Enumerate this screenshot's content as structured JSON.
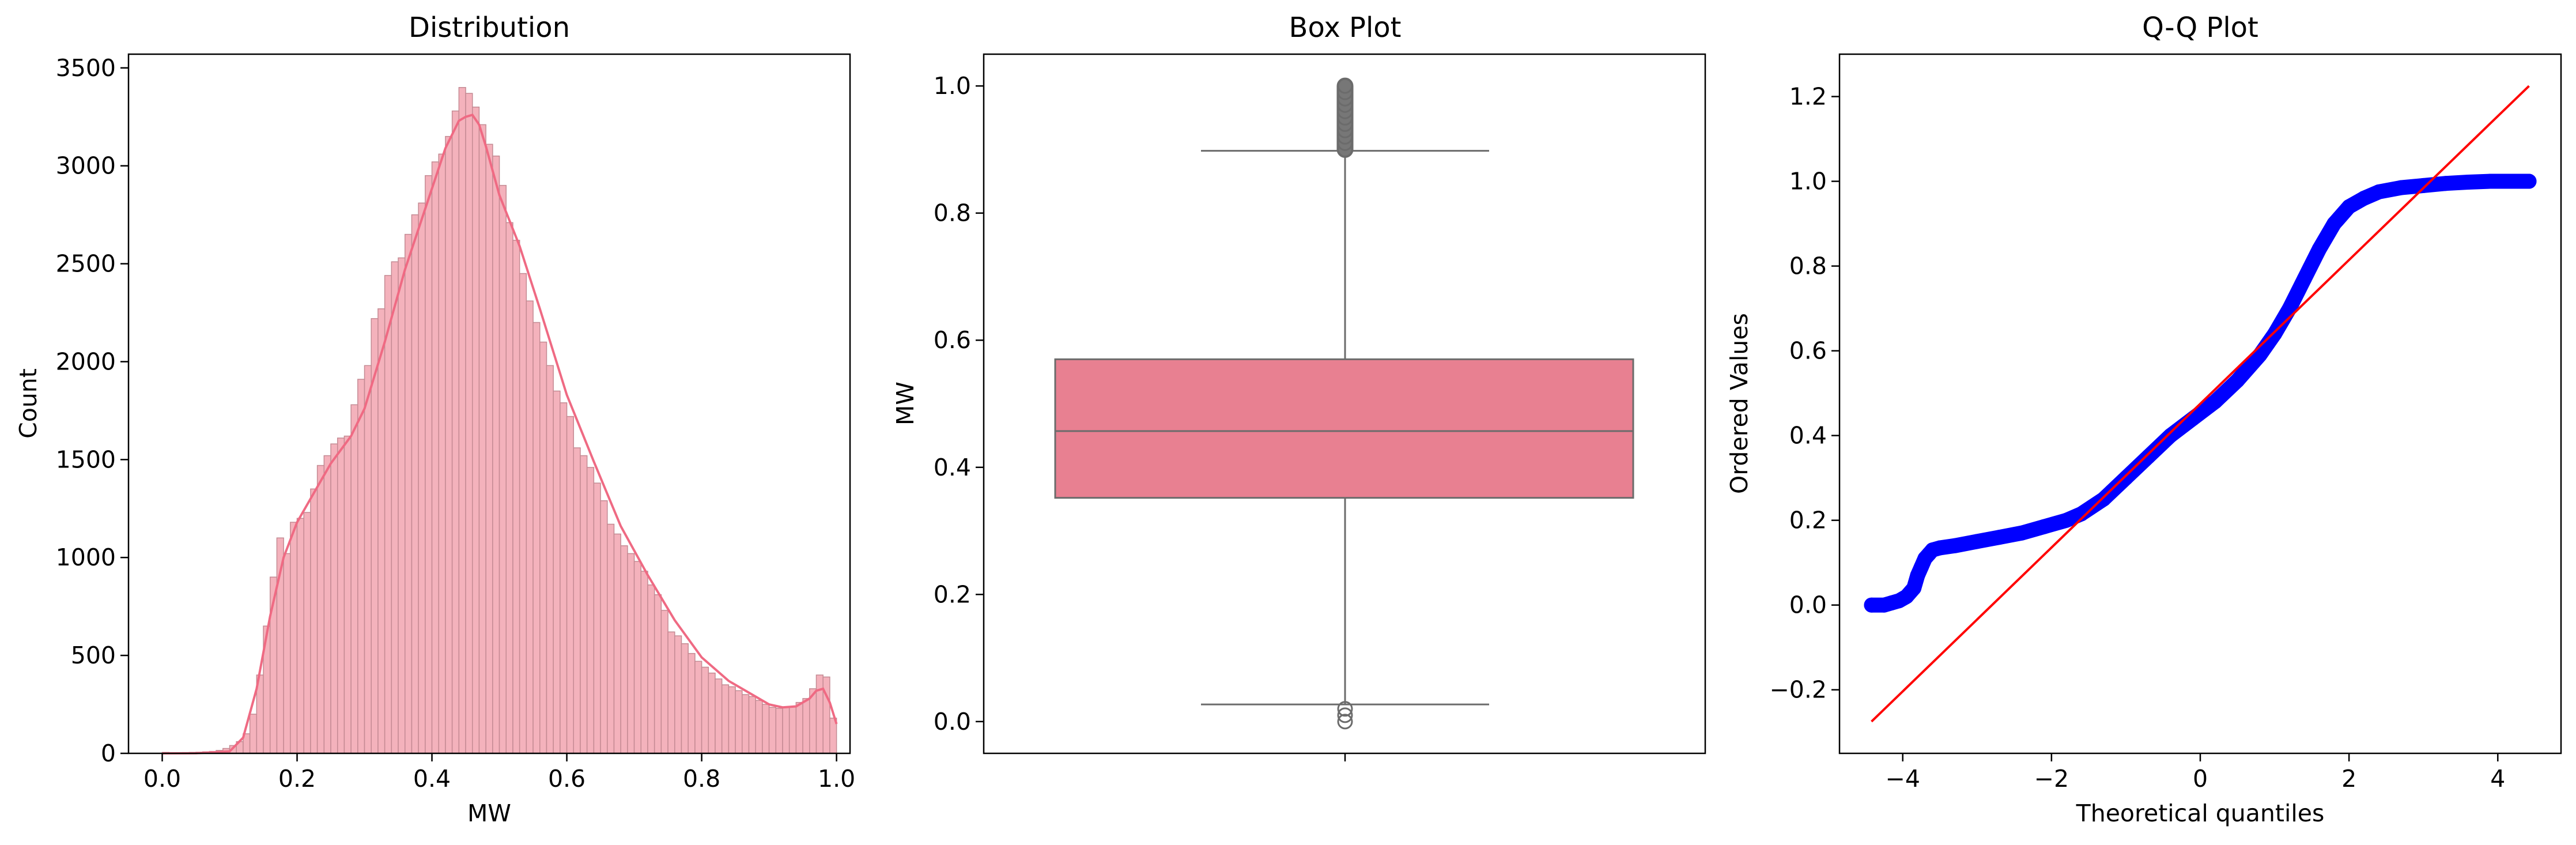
{
  "chart_data": [
    {
      "type": "bar",
      "title": "Distribution",
      "xlabel": "MW",
      "ylabel": "Count",
      "xlim": [
        -0.05,
        1.02
      ],
      "ylim": [
        0,
        3570
      ],
      "xticks": [
        0.0,
        0.2,
        0.4,
        0.6,
        0.8,
        1.0
      ],
      "xtick_labels": [
        "0.0",
        "0.2",
        "0.4",
        "0.6",
        "0.8",
        "1.0"
      ],
      "yticks": [
        0,
        500,
        1000,
        1500,
        2000,
        2500,
        3000,
        3500
      ],
      "ytick_labels": [
        "0",
        "500",
        "1000",
        "1500",
        "2000",
        "2500",
        "3000",
        "3500"
      ],
      "bin_width": 0.01,
      "bin_starts": [
        0.0,
        0.01,
        0.02,
        0.03,
        0.04,
        0.05,
        0.06,
        0.07,
        0.08,
        0.09,
        0.1,
        0.11,
        0.12,
        0.13,
        0.14,
        0.15,
        0.16,
        0.17,
        0.18,
        0.19,
        0.2,
        0.21,
        0.22,
        0.23,
        0.24,
        0.25,
        0.26,
        0.27,
        0.28,
        0.29,
        0.3,
        0.31,
        0.32,
        0.33,
        0.34,
        0.35,
        0.36,
        0.37,
        0.38,
        0.39,
        0.4,
        0.41,
        0.42,
        0.43,
        0.44,
        0.45,
        0.46,
        0.47,
        0.48,
        0.49,
        0.5,
        0.51,
        0.52,
        0.53,
        0.54,
        0.55,
        0.56,
        0.57,
        0.58,
        0.59,
        0.6,
        0.61,
        0.62,
        0.63,
        0.64,
        0.65,
        0.66,
        0.67,
        0.68,
        0.69,
        0.7,
        0.71,
        0.72,
        0.73,
        0.74,
        0.75,
        0.76,
        0.77,
        0.78,
        0.79,
        0.8,
        0.81,
        0.82,
        0.83,
        0.84,
        0.85,
        0.86,
        0.87,
        0.88,
        0.89,
        0.9,
        0.91,
        0.92,
        0.93,
        0.94,
        0.95,
        0.96,
        0.97,
        0.98,
        0.99
      ],
      "counts": [
        5,
        3,
        3,
        4,
        5,
        6,
        8,
        10,
        15,
        25,
        40,
        60,
        100,
        200,
        400,
        650,
        900,
        1100,
        1020,
        1180,
        1200,
        1230,
        1350,
        1470,
        1520,
        1580,
        1610,
        1620,
        1780,
        1910,
        1980,
        2220,
        2270,
        2440,
        2510,
        2530,
        2650,
        2750,
        2810,
        2950,
        3020,
        3060,
        3150,
        3280,
        3400,
        3370,
        3300,
        3210,
        3110,
        3050,
        2900,
        2710,
        2620,
        2450,
        2310,
        2200,
        2100,
        1980,
        1850,
        1790,
        1720,
        1560,
        1520,
        1460,
        1380,
        1290,
        1170,
        1120,
        1060,
        1020,
        980,
        930,
        860,
        810,
        730,
        620,
        600,
        560,
        510,
        470,
        440,
        410,
        380,
        350,
        340,
        320,
        300,
        290,
        270,
        250,
        235,
        230,
        235,
        240,
        260,
        280,
        330,
        400,
        390,
        180
      ],
      "kde": {
        "x": [
          0.0,
          0.05,
          0.1,
          0.12,
          0.14,
          0.16,
          0.18,
          0.2,
          0.22,
          0.25,
          0.28,
          0.3,
          0.33,
          0.36,
          0.39,
          0.42,
          0.44,
          0.45,
          0.46,
          0.47,
          0.48,
          0.5,
          0.53,
          0.56,
          0.6,
          0.64,
          0.68,
          0.72,
          0.76,
          0.8,
          0.84,
          0.88,
          0.9,
          0.92,
          0.94,
          0.96,
          0.97,
          0.98,
          0.99,
          1.0
        ],
        "y": [
          0,
          1,
          10,
          80,
          330,
          700,
          1000,
          1180,
          1300,
          1480,
          1620,
          1760,
          2100,
          2470,
          2780,
          3090,
          3230,
          3250,
          3260,
          3210,
          3100,
          2850,
          2590,
          2270,
          1830,
          1490,
          1160,
          910,
          680,
          490,
          370,
          290,
          250,
          235,
          240,
          280,
          320,
          330,
          260,
          150
        ]
      },
      "colors": {
        "bar_fill": "#f4b2bc",
        "bar_edge": "#c48a93",
        "kde": "#ef6a83"
      }
    },
    {
      "type": "box",
      "title": "Box Plot",
      "ylabel": "MW",
      "ylim": [
        -0.05,
        1.05
      ],
      "yticks": [
        0.0,
        0.2,
        0.4,
        0.6,
        0.8,
        1.0
      ],
      "ytick_labels": [
        "0.0",
        "0.2",
        "0.4",
        "0.6",
        "0.8",
        "1.0"
      ],
      "box": {
        "q1": 0.352,
        "median": 0.457,
        "q3": 0.57,
        "whisker_low": 0.027,
        "whisker_high": 0.898
      },
      "outliers_high": [
        0.9,
        0.91,
        0.92,
        0.93,
        0.94,
        0.95,
        0.96,
        0.97,
        0.98,
        0.99,
        1.0
      ],
      "outliers_low": [
        0.0,
        0.01,
        0.02
      ],
      "colors": {
        "box_fill": "#e88091",
        "line": "#6b6b6b"
      }
    },
    {
      "type": "scatter",
      "title": "Q-Q Plot",
      "xlabel": "Theoretical quantiles",
      "ylabel": "Ordered Values",
      "xlim": [
        -4.85,
        4.85
      ],
      "ylim": [
        -0.35,
        1.3
      ],
      "xticks": [
        -4,
        -2,
        0,
        2,
        4
      ],
      "xtick_labels": [
        "−4",
        "−2",
        "0",
        "2",
        "4"
      ],
      "yticks": [
        -0.2,
        0.0,
        0.2,
        0.4,
        0.6,
        0.8,
        1.0,
        1.2
      ],
      "ytick_labels": [
        "−0.2",
        "0.0",
        "0.2",
        "0.4",
        "0.6",
        "0.8",
        "1.0",
        "1.2"
      ],
      "points": {
        "x": [
          -4.42,
          -4.25,
          -4.15,
          -4.05,
          -3.95,
          -3.85,
          -3.8,
          -3.75,
          -3.7,
          -3.65,
          -3.6,
          -3.5,
          -3.3,
          -3.0,
          -2.7,
          -2.4,
          -2.1,
          -1.8,
          -1.6,
          -1.3,
          -1.0,
          -0.7,
          -0.4,
          -0.1,
          0.2,
          0.5,
          0.8,
          1.0,
          1.2,
          1.4,
          1.6,
          1.8,
          2.0,
          2.2,
          2.4,
          2.7,
          3.0,
          3.3,
          3.6,
          3.9,
          4.1,
          4.25,
          4.42
        ],
        "y": [
          0.0,
          0.0,
          0.005,
          0.01,
          0.02,
          0.04,
          0.07,
          0.09,
          0.11,
          0.12,
          0.13,
          0.135,
          0.14,
          0.15,
          0.16,
          0.17,
          0.185,
          0.2,
          0.215,
          0.25,
          0.3,
          0.35,
          0.4,
          0.44,
          0.48,
          0.53,
          0.59,
          0.64,
          0.7,
          0.77,
          0.84,
          0.9,
          0.94,
          0.96,
          0.975,
          0.985,
          0.99,
          0.995,
          0.998,
          1.0,
          1.0,
          1.0,
          1.0
        ]
      },
      "fit_line": {
        "x": [
          -4.42,
          4.42
        ],
        "y": [
          -0.275,
          1.225
        ]
      },
      "colors": {
        "points": "#0000ff",
        "line": "#ff0000"
      }
    }
  ]
}
